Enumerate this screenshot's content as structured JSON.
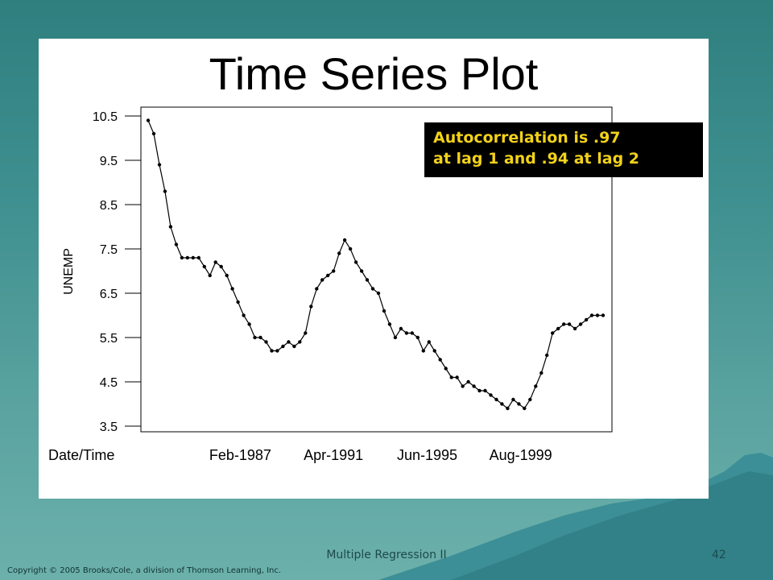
{
  "slide": {
    "title": "Time Series Plot",
    "callout": {
      "line1": "Autocorrelation is .97",
      "line2": "at lag 1 and .94 at lag 2"
    },
    "footer": "Multiple Regression II",
    "page_number": "42",
    "copyright": "Copyright © 2005 Brooks/Cole, a division of Thomson Learning, Inc."
  },
  "colors": {
    "callout_bg": "#000000",
    "callout_text": "#f2d21a",
    "panel": "#ffffff",
    "series": "#000000"
  },
  "chart_data": {
    "type": "line",
    "ylabel": "UNEMP",
    "xlabel": "Date/Time",
    "ylim": [
      3.5,
      10.5
    ],
    "yticks": [
      "10.5",
      "9.5",
      "8.5",
      "7.5",
      "6.5",
      "5.5",
      "4.5",
      "3.5"
    ],
    "xticks": [
      "Feb-1987",
      "Apr-1991",
      "Jun-1995",
      "Aug-1999"
    ],
    "series": [
      {
        "markers": true,
        "x": [
          1983.0,
          1983.25,
          1983.5,
          1983.75,
          1984.0,
          1984.25,
          1984.5,
          1984.75,
          1985.0,
          1985.25,
          1985.5,
          1985.75,
          1986.0,
          1986.25,
          1986.5,
          1986.75,
          1987.0,
          1987.25,
          1987.5,
          1987.75,
          1988.0,
          1988.25,
          1988.5,
          1988.75,
          1989.0,
          1989.25,
          1989.5,
          1989.75,
          1990.0,
          1990.25,
          1990.5,
          1990.75,
          1991.0,
          1991.25,
          1991.5,
          1991.75,
          1992.0,
          1992.25,
          1992.5,
          1992.75,
          1993.0,
          1993.25,
          1993.5,
          1993.75,
          1994.0,
          1994.25,
          1994.5,
          1994.75,
          1995.0,
          1995.25,
          1995.5,
          1995.75,
          1996.0,
          1996.25,
          1996.5,
          1996.75,
          1997.0,
          1997.25,
          1997.5,
          1997.75,
          1998.0,
          1998.25,
          1998.5,
          1998.75,
          1999.0,
          1999.25,
          1999.5,
          1999.75,
          2000.0,
          2000.25,
          2000.5,
          2000.75,
          2001.0,
          2001.25,
          2001.5,
          2001.75,
          2002.0,
          2002.25,
          2002.5,
          2002.75,
          2003.0,
          2003.25
        ],
        "y": [
          10.4,
          10.1,
          9.4,
          8.8,
          8.0,
          7.6,
          7.3,
          7.3,
          7.3,
          7.3,
          7.1,
          6.9,
          7.2,
          7.1,
          6.9,
          6.6,
          6.3,
          6.0,
          5.8,
          5.5,
          5.5,
          5.4,
          5.2,
          5.2,
          5.3,
          5.4,
          5.3,
          5.4,
          5.6,
          6.2,
          6.6,
          6.8,
          6.9,
          7.0,
          7.4,
          7.7,
          7.5,
          7.2,
          7.0,
          6.8,
          6.6,
          6.5,
          6.1,
          5.8,
          5.5,
          5.7,
          5.6,
          5.6,
          5.5,
          5.2,
          5.4,
          5.2,
          5.0,
          4.8,
          4.6,
          4.6,
          4.4,
          4.5,
          4.4,
          4.3,
          4.3,
          4.2,
          4.1,
          4.0,
          3.9,
          4.1,
          4.0,
          3.9,
          4.1,
          4.4,
          4.7,
          5.1,
          5.6,
          5.7,
          5.8,
          5.8,
          5.7,
          5.8,
          5.9,
          6.0,
          6.0,
          6.0
        ]
      }
    ]
  }
}
